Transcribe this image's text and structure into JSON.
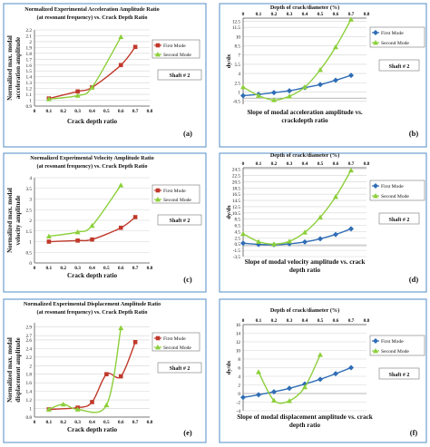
{
  "colors": {
    "red": "#c0392b",
    "green": "#8ccf3a",
    "blue": "#2f6db5",
    "frame": "#6e9fd0",
    "grid": "#d4d4d4"
  },
  "chart_data": [
    {
      "panel_label": "(a)",
      "type": "scatter",
      "title": [
        "Normalized Experimental Acceleration Amplitude Ratio",
        "(at resonant frequency) vs. Crack Depth Ratio"
      ],
      "xlabel": "Crack depth ratio",
      "ylabel": [
        "Normalized max. modal",
        "acceleration amplitude"
      ],
      "xlim": [
        0,
        0.8
      ],
      "ylim": [
        0.9,
        2.2
      ],
      "xticks": [
        "0",
        "0.1",
        "0.2",
        "0.3",
        "0.4",
        "0.5",
        "0.6",
        "0.7",
        "0.8"
      ],
      "yticks": [
        "0.9",
        "1",
        "1.1",
        "1.2",
        "1.3",
        "1.4",
        "1.5",
        "1.6",
        "1.7",
        "1.8",
        "1.9",
        "2",
        "2.1",
        "2.2"
      ],
      "legend": {
        "entries": [
          "First Mode",
          "Second Mode"
        ],
        "position": "top-right"
      },
      "annotation": "Shaft # 2",
      "series": [
        {
          "name": "First Mode",
          "marker": "square",
          "color": "red",
          "x": [
            0.1,
            0.3,
            0.4,
            0.6,
            0.7
          ],
          "y": [
            1.03,
            1.15,
            1.22,
            1.6,
            1.91
          ]
        },
        {
          "name": "Second Mode",
          "marker": "triangle",
          "color": "green",
          "x": [
            0.1,
            0.3,
            0.4,
            0.6
          ],
          "y": [
            1.02,
            1.08,
            1.22,
            2.08
          ]
        }
      ]
    },
    {
      "panel_label": "(b)",
      "type": "line",
      "title": [
        "Depth of crack/diameter (%)"
      ],
      "xlabel": [
        "Slope of modal acceleration amplitude vs.",
        "crackdepth ratio"
      ],
      "ylabel": "dy/dx",
      "xlim": [
        0,
        0.8
      ],
      "ylim": [
        -1,
        13
      ],
      "xticks": [
        "0",
        "0.1",
        "0.2",
        "0.3",
        "0.4",
        "0.5",
        "0.6",
        "0.7",
        "0.8"
      ],
      "yticks": [
        "-0.5",
        "1",
        "2.5",
        "4",
        "5.5",
        "7",
        "8.5",
        "10",
        "11.5",
        "12.5"
      ],
      "legend": {
        "entries": [
          "First Mode",
          "Second Mode"
        ],
        "position": "top-right"
      },
      "annotation": "Shaft # 2",
      "series": [
        {
          "name": "First Mode",
          "marker": "diamond",
          "color": "blue",
          "x": [
            0.0,
            0.1,
            0.2,
            0.3,
            0.4,
            0.5,
            0.6,
            0.7
          ],
          "y": [
            0.4,
            0.6,
            0.9,
            1.2,
            1.7,
            2.2,
            2.9,
            3.7
          ]
        },
        {
          "name": "Second Mode",
          "marker": "triangle",
          "color": "green",
          "x": [
            0.0,
            0.1,
            0.2,
            0.3,
            0.4,
            0.5,
            0.6,
            0.7
          ],
          "y": [
            1.8,
            0.4,
            -0.3,
            0.3,
            1.8,
            4.6,
            8.3,
            12.8
          ]
        }
      ]
    },
    {
      "panel_label": "(c)",
      "type": "scatter",
      "title": [
        "Normalized Experimental  Velocity Amplitude Ratio",
        "(at resonant frequency) vs. Crack Depth Ratio"
      ],
      "xlabel": "Crack depth ratio",
      "ylabel": [
        "Normalized max. modal",
        "velocity amplitude"
      ],
      "xlim": [
        0,
        0.8
      ],
      "ylim": [
        0,
        4
      ],
      "xticks": [
        "0",
        "0.1",
        "0.2",
        "0.3",
        "0.4",
        "0.5",
        "0.6",
        "0.7",
        "0.8"
      ],
      "yticks": [
        "0",
        "0.5",
        "1",
        "1.5",
        "2",
        "2.5",
        "3",
        "3.5",
        "4"
      ],
      "legend": {
        "entries": [
          "First Mode",
          "Second Mode"
        ],
        "position": "top-right"
      },
      "annotation": "Shaft  # 2",
      "series": [
        {
          "name": "First Mode",
          "marker": "square",
          "color": "red",
          "x": [
            0.1,
            0.3,
            0.4,
            0.6,
            0.7
          ],
          "y": [
            1.0,
            1.05,
            1.1,
            1.65,
            2.15
          ]
        },
        {
          "name": "Second Mode",
          "marker": "triangle",
          "color": "green",
          "x": [
            0.1,
            0.3,
            0.4,
            0.6
          ],
          "y": [
            1.25,
            1.45,
            1.75,
            3.65
          ]
        }
      ]
    },
    {
      "panel_label": "(d)",
      "type": "line",
      "title": [
        "Depth of crack/diameter (%)"
      ],
      "xlabel": [
        "Slope of modal velocity amplitude vs. crack",
        "depth ratio"
      ],
      "ylabel": "dy/dx",
      "xlim": [
        0,
        0.8
      ],
      "ylim": [
        -3.5,
        25
      ],
      "xticks": [
        "0",
        "0.1",
        "0.2",
        "0.3",
        "0.4",
        "0.5",
        "0.6",
        "0.7",
        "0.8"
      ],
      "yticks": [
        "-3.5",
        "-1.5",
        "0.5",
        "2.5",
        "4.5",
        "6.5",
        "8.5",
        "10.5",
        "12.5",
        "14.5",
        "16.5",
        "18.5",
        "20.5",
        "22.5",
        "24.5"
      ],
      "legend": {
        "entries": [
          "First Mode",
          "Second Mode"
        ],
        "position": "top-right"
      },
      "annotation": "Shaft # 2",
      "series": [
        {
          "name": "First Mode",
          "marker": "diamond",
          "color": "blue",
          "x": [
            0.0,
            0.1,
            0.2,
            0.3,
            0.4,
            0.5,
            0.6,
            0.7
          ],
          "y": [
            0.8,
            0.4,
            0.3,
            0.6,
            1.2,
            2.2,
            3.6,
            5.4
          ]
        },
        {
          "name": "Second Mode",
          "marker": "triangle",
          "color": "green",
          "x": [
            0.0,
            0.1,
            0.2,
            0.3,
            0.4,
            0.5,
            0.6,
            0.7
          ],
          "y": [
            3.8,
            1.3,
            0.5,
            1.4,
            4.3,
            9.1,
            15.7,
            24.2
          ]
        }
      ]
    },
    {
      "panel_label": "(e)",
      "type": "scatter",
      "title": [
        "Normalized Experimental Displacement Amplitude Ratio",
        "(at resonant frequency) vs. Crack    Depth Ratio"
      ],
      "xlabel": "Crack depth ratio",
      "ylabel": [
        "Normalized max. modal",
        "displacement amplitude"
      ],
      "xlim": [
        0,
        0.8
      ],
      "ylim": [
        0.8,
        3
      ],
      "xticks": [
        "0",
        "0.1",
        "0.2",
        "0.3",
        "0.4",
        "0.5",
        "0.6",
        "0.7",
        "0.8"
      ],
      "yticks": [
        "0.8",
        "1",
        "1.2",
        "1.4",
        "1.6",
        "1.8",
        "2",
        "2.2",
        "2.4",
        "2.6",
        "2.7",
        "2.9"
      ],
      "legend": {
        "entries": [
          "First Mode",
          "Second Mode"
        ],
        "position": "top-right"
      },
      "annotation": "Shaft # 2",
      "series": [
        {
          "name": "First Mode",
          "marker": "square",
          "color": "red",
          "x": [
            0.1,
            0.3,
            0.4,
            0.5,
            0.6,
            0.7
          ],
          "y": [
            0.98,
            1.02,
            1.15,
            1.8,
            1.75,
            2.55
          ]
        },
        {
          "name": "Second Mode",
          "marker": "triangle",
          "color": "green",
          "x": [
            0.1,
            0.2,
            0.3,
            0.5,
            0.6
          ],
          "y": [
            0.98,
            1.1,
            0.98,
            1.08,
            2.88
          ]
        }
      ]
    },
    {
      "panel_label": "(f)",
      "type": "line",
      "title": [
        "Depth of crack/diameter (%)"
      ],
      "xlabel": [
        "Slope of modal displacement amplitude vs. crack",
        "depth ratio"
      ],
      "ylabel": "dy/dx",
      "xlim": [
        0,
        0.8
      ],
      "ylim": [
        -4,
        16
      ],
      "xticks": [
        "0",
        "0.1",
        "0.2",
        "0.3",
        "0.4",
        "0.5",
        "0.6",
        "0.7",
        "0.8"
      ],
      "yticks": [
        "-4",
        "-2",
        "0",
        "2",
        "4",
        "6",
        "8",
        "10",
        "12",
        "14",
        "16"
      ],
      "legend": {
        "entries": [
          "First Mode",
          "Second Mode"
        ],
        "position": "top-right"
      },
      "annotation": "Shaft # 2",
      "series": [
        {
          "name": "First Mode",
          "marker": "diamond",
          "color": "blue",
          "x": [
            0.0,
            0.1,
            0.2,
            0.3,
            0.4,
            0.5,
            0.6,
            0.7
          ],
          "y": [
            -0.9,
            -0.3,
            0.4,
            1.2,
            2.2,
            3.3,
            4.6,
            6.0
          ]
        },
        {
          "name": "Second Mode",
          "marker": "triangle",
          "color": "green",
          "x": [
            0.1,
            0.2,
            0.3,
            0.4,
            0.5
          ],
          "y": [
            5.0,
            -1.6,
            -1.7,
            1.5,
            9.0
          ]
        }
      ]
    }
  ]
}
